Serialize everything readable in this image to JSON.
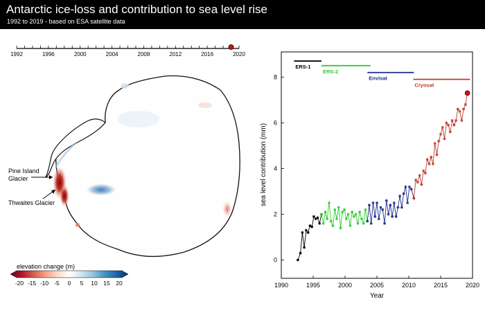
{
  "title": "Antarctic ice-loss and contribution to sea level rise",
  "subtitle": "1992 to 2019 - based on ESA satellite data",
  "timeline": {
    "ticks": [
      "1992",
      "1996",
      "2000",
      "2004",
      "2008",
      "2012",
      "2016",
      "2020"
    ],
    "range": [
      1992,
      2020
    ],
    "marker_year": 2019
  },
  "map": {
    "labels": {
      "pine_island": [
        "Pine Island",
        "Glacier"
      ],
      "thwaites": "Thwaites Glacier"
    },
    "legend": {
      "title": "elevation change (m)",
      "ticks": [
        "-20",
        "-15",
        "-10",
        "-5",
        "0",
        "5",
        "10",
        "15",
        "20"
      ],
      "colors": [
        "#67001f",
        "#b2182b",
        "#d6604d",
        "#f4a582",
        "#fddbc7",
        "#ffffff",
        "#d1e5f0",
        "#92c5de",
        "#4393c3",
        "#2166ac",
        "#053061"
      ]
    }
  },
  "chart_data": {
    "type": "line",
    "xlabel": "Year",
    "ylabel": "sea level contribution (mm)",
    "xlim": [
      1990,
      2020
    ],
    "ylim": [
      -0.8,
      9.1
    ],
    "xticks": [
      "1990",
      "1995",
      "2000",
      "2005",
      "2010",
      "2015",
      "2020"
    ],
    "yticks": [
      "0",
      "2",
      "4",
      "6",
      "8"
    ],
    "missions": [
      {
        "name": "ERS-1",
        "start": 1992.0,
        "end": 1996.3,
        "y": 8.7,
        "color": "#000000"
      },
      {
        "name": "ERS-2",
        "start": 1996.3,
        "end": 2004.0,
        "y": 8.5,
        "color": "#2ecc2e"
      },
      {
        "name": "Envisat",
        "start": 2003.5,
        "end": 2010.8,
        "y": 8.2,
        "color": "#1a2a8a"
      },
      {
        "name": "Cryosat",
        "start": 2010.7,
        "end": 2019.6,
        "y": 7.9,
        "color": "#c0392b"
      }
    ],
    "series": [
      {
        "color": "#000000",
        "x": [
          1992.6,
          1993.0,
          1993.3,
          1993.6,
          1993.9,
          1994.2,
          1994.5,
          1994.8,
          1995.1,
          1995.4,
          1995.7,
          1996.0,
          1996.3
        ],
        "y": [
          0.0,
          0.3,
          1.2,
          0.55,
          1.3,
          1.2,
          1.5,
          1.45,
          1.9,
          1.8,
          1.85,
          1.6,
          2.0
        ]
      },
      {
        "color": "#2ecc2e",
        "x": [
          1996.3,
          1996.6,
          1996.9,
          1997.2,
          1997.5,
          1997.8,
          1998.1,
          1998.4,
          1998.7,
          1999.0,
          1999.3,
          1999.6,
          1999.9,
          2000.2,
          2000.5,
          2000.8,
          2001.1,
          2001.4,
          2001.7,
          2002.0,
          2002.3,
          2002.6,
          2002.9,
          2003.2,
          2003.5
        ],
        "y": [
          2.0,
          1.6,
          2.1,
          1.8,
          2.5,
          1.7,
          1.5,
          2.2,
          1.8,
          2.3,
          1.4,
          2.1,
          2.2,
          1.8,
          2.0,
          1.5,
          2.1,
          1.9,
          2.0,
          1.6,
          2.1,
          1.8,
          1.6,
          2.2,
          1.7
        ]
      },
      {
        "color": "#1a2a8a",
        "x": [
          2003.5,
          2003.8,
          2004.1,
          2004.4,
          2004.7,
          2005.0,
          2005.3,
          2005.6,
          2005.9,
          2006.2,
          2006.5,
          2006.8,
          2007.1,
          2007.4,
          2007.7,
          2008.0,
          2008.3,
          2008.6,
          2008.9,
          2009.2,
          2009.5,
          2009.8,
          2010.1,
          2010.4,
          2010.8
        ],
        "y": [
          1.7,
          2.4,
          1.6,
          2.5,
          1.9,
          2.5,
          1.8,
          2.3,
          2.2,
          1.6,
          2.6,
          2.0,
          2.4,
          1.9,
          2.5,
          1.9,
          2.3,
          2.8,
          2.3,
          2.9,
          3.2,
          2.5,
          3.2,
          3.1,
          2.7
        ]
      },
      {
        "color": "#c0392b",
        "x": [
          2010.8,
          2011.1,
          2011.4,
          2011.7,
          2012.0,
          2012.3,
          2012.6,
          2012.9,
          2013.2,
          2013.5,
          2013.8,
          2014.1,
          2014.4,
          2014.7,
          2015.0,
          2015.3,
          2015.6,
          2015.9,
          2016.2,
          2016.5,
          2016.8,
          2017.1,
          2017.4,
          2017.7,
          2018.0,
          2018.3,
          2018.6,
          2018.9,
          2019.2
        ],
        "y": [
          2.7,
          3.5,
          3.4,
          3.7,
          3.3,
          3.9,
          3.8,
          4.4,
          4.2,
          4.5,
          4.2,
          5.1,
          4.6,
          5.2,
          5.5,
          5.8,
          5.3,
          6.0,
          5.9,
          5.6,
          6.1,
          5.9,
          6.1,
          6.6,
          6.5,
          6.1,
          6.6,
          6.8,
          7.3
        ]
      }
    ],
    "endpoint": {
      "x": 2019.2,
      "y": 7.3
    }
  }
}
